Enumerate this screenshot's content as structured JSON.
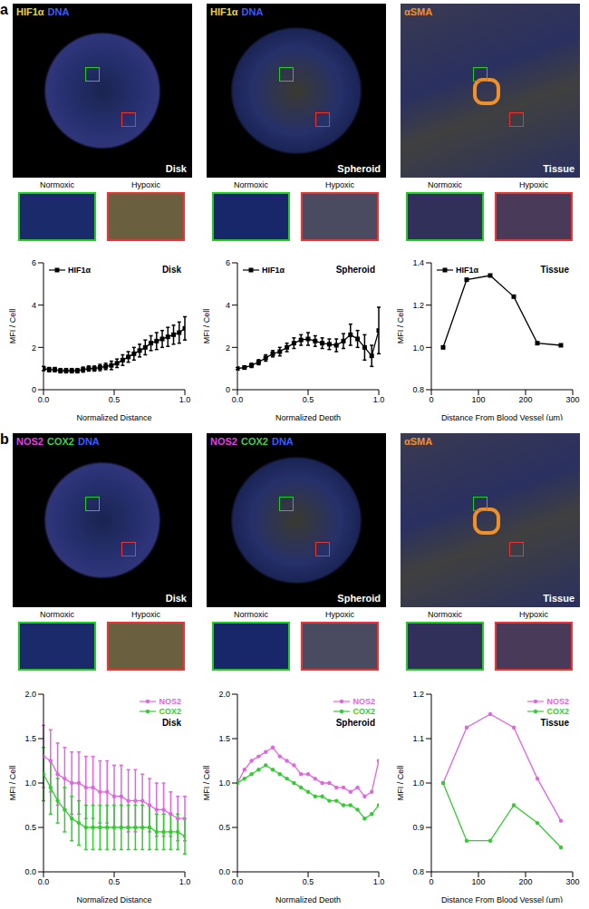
{
  "figure": {
    "panels": [
      {
        "letter": "a",
        "stains": [
          {
            "text": "HIF1α",
            "color": "#f2d230"
          },
          {
            "text": "DNA",
            "color": "#3b5bff"
          }
        ],
        "tissue_stain": {
          "text": "αSMA",
          "color": "#f0902a"
        },
        "samples": [
          "Disk",
          "Spheroid",
          "Tissue"
        ],
        "insets": [
          "Normoxic",
          "Hypoxic"
        ]
      },
      {
        "letter": "b",
        "stains": [
          {
            "text": "NOS2",
            "color": "#e040e0"
          },
          {
            "text": "COX2",
            "color": "#40d040"
          },
          {
            "text": "DNA",
            "color": "#3b5bff"
          }
        ],
        "tissue_stain": {
          "text": "αSMA",
          "color": "#f0902a"
        },
        "samples": [
          "Disk",
          "Spheroid",
          "Tissue"
        ],
        "insets": [
          "Normoxic",
          "Hypoxic"
        ]
      }
    ]
  },
  "chart_data": [
    {
      "type": "line",
      "title": "Disk",
      "x_label": "Normalized Distance",
      "y_label": "MFI / Cell",
      "legend": "top-left",
      "xlim": [
        0,
        1
      ],
      "xticks": [
        {
          "value": 0,
          "label": "0.0"
        },
        {
          "value": 0.5,
          "label": "0.5"
        },
        {
          "value": 1,
          "label": "1.0"
        }
      ],
      "ylim": [
        0,
        6
      ],
      "yticks": [
        0,
        2,
        4,
        6
      ],
      "x": [
        0,
        0.04,
        0.08,
        0.12,
        0.16,
        0.2,
        0.24,
        0.28,
        0.32,
        0.36,
        0.4,
        0.44,
        0.48,
        0.52,
        0.56,
        0.6,
        0.64,
        0.68,
        0.72,
        0.76,
        0.8,
        0.84,
        0.88,
        0.92,
        0.96,
        1.0
      ],
      "series": [
        {
          "name": "HIF1α",
          "color": "#000000",
          "marker": "square",
          "values": [
            1.0,
            0.95,
            0.95,
            0.9,
            0.9,
            0.9,
            0.9,
            0.95,
            1.0,
            1.0,
            1.05,
            1.1,
            1.15,
            1.25,
            1.4,
            1.55,
            1.7,
            1.85,
            2.0,
            2.2,
            2.3,
            2.4,
            2.5,
            2.6,
            2.7,
            2.9
          ],
          "errors": [
            0.1,
            0.1,
            0.1,
            0.1,
            0.1,
            0.1,
            0.1,
            0.12,
            0.12,
            0.12,
            0.15,
            0.15,
            0.2,
            0.2,
            0.25,
            0.25,
            0.3,
            0.3,
            0.35,
            0.35,
            0.4,
            0.4,
            0.45,
            0.45,
            0.5,
            0.55
          ]
        }
      ]
    },
    {
      "type": "line",
      "title": "Spheroid",
      "x_label": "Normalized Depth",
      "y_label": "MFI / Cell",
      "legend": "top-left",
      "xlim": [
        0,
        1
      ],
      "xticks": [
        {
          "value": 0,
          "label": "0.0"
        },
        {
          "value": 0.5,
          "label": "0.5"
        },
        {
          "value": 1,
          "label": "1.0"
        }
      ],
      "ylim": [
        0,
        6
      ],
      "yticks": [
        0,
        2,
        4,
        6
      ],
      "x": [
        0,
        0.05,
        0.1,
        0.15,
        0.2,
        0.25,
        0.3,
        0.35,
        0.4,
        0.45,
        0.5,
        0.55,
        0.6,
        0.65,
        0.7,
        0.75,
        0.8,
        0.85,
        0.9,
        0.95,
        1.0
      ],
      "series": [
        {
          "name": "HIF1α",
          "color": "#000000",
          "marker": "square",
          "values": [
            1.0,
            1.05,
            1.15,
            1.3,
            1.5,
            1.7,
            1.8,
            2.0,
            2.2,
            2.35,
            2.4,
            2.3,
            2.2,
            2.15,
            2.1,
            2.3,
            2.6,
            2.4,
            2.0,
            1.6,
            2.8
          ],
          "errors": [
            0.05,
            0.08,
            0.1,
            0.12,
            0.15,
            0.15,
            0.2,
            0.2,
            0.25,
            0.25,
            0.3,
            0.25,
            0.25,
            0.25,
            0.3,
            0.35,
            0.5,
            0.4,
            0.6,
            0.5,
            1.1
          ]
        }
      ]
    },
    {
      "type": "line",
      "title": "Tissue",
      "x_label": "Distance From Blood Vessel (μm)",
      "y_label": "MFI / Cell",
      "legend": "top-left",
      "xlim": [
        0,
        300
      ],
      "xticks": [
        0,
        100,
        200,
        300
      ],
      "ylim": [
        0.8,
        1.4
      ],
      "yticks": [
        {
          "value": 0.8,
          "label": "0.8"
        },
        {
          "value": 1.0,
          "label": "1.0"
        },
        {
          "value": 1.2,
          "label": "1.2"
        },
        {
          "value": 1.4,
          "label": "1.4"
        }
      ],
      "x": [
        25,
        75,
        125,
        175,
        225,
        275
      ],
      "series": [
        {
          "name": "HIF1α",
          "color": "#000000",
          "marker": "square",
          "values": [
            1.0,
            1.32,
            1.34,
            1.24,
            1.02,
            1.01
          ]
        }
      ]
    },
    {
      "type": "line",
      "title": "Disk",
      "x_label": "Normalized Distance",
      "y_label": "MFI / Cell",
      "legend": "top-right",
      "xlim": [
        0,
        1
      ],
      "xticks": [
        {
          "value": 0,
          "label": "0.0"
        },
        {
          "value": 0.5,
          "label": "0.5"
        },
        {
          "value": 1,
          "label": "1.0"
        }
      ],
      "ylim": [
        0,
        2
      ],
      "yticks": [
        {
          "value": 0,
          "label": "0.0"
        },
        {
          "value": 0.5,
          "label": "0.5"
        },
        {
          "value": 1,
          "label": "1.0"
        },
        {
          "value": 1.5,
          "label": "1.5"
        },
        {
          "value": 2,
          "label": "2.0"
        }
      ],
      "x": [
        0,
        0.05,
        0.1,
        0.15,
        0.2,
        0.25,
        0.3,
        0.35,
        0.4,
        0.45,
        0.5,
        0.55,
        0.6,
        0.65,
        0.7,
        0.75,
        0.8,
        0.85,
        0.9,
        0.95,
        1.0
      ],
      "series": [
        {
          "name": "NOS2",
          "color": "#e066e0",
          "marker": "circle",
          "values": [
            1.3,
            1.25,
            1.1,
            1.05,
            1.0,
            1.0,
            0.95,
            0.95,
            0.9,
            0.9,
            0.85,
            0.85,
            0.8,
            0.8,
            0.8,
            0.75,
            0.7,
            0.7,
            0.65,
            0.6,
            0.6
          ],
          "errors": [
            0.35,
            0.35,
            0.35,
            0.35,
            0.35,
            0.35,
            0.35,
            0.35,
            0.35,
            0.35,
            0.35,
            0.35,
            0.35,
            0.35,
            0.3,
            0.3,
            0.3,
            0.3,
            0.25,
            0.25,
            0.25
          ]
        },
        {
          "name": "COX2",
          "color": "#33cc33",
          "marker": "circle",
          "values": [
            1.1,
            0.95,
            0.8,
            0.7,
            0.6,
            0.55,
            0.5,
            0.5,
            0.5,
            0.5,
            0.5,
            0.5,
            0.5,
            0.5,
            0.5,
            0.5,
            0.45,
            0.45,
            0.45,
            0.45,
            0.4
          ],
          "errors": [
            0.3,
            0.3,
            0.25,
            0.25,
            0.25,
            0.25,
            0.25,
            0.25,
            0.25,
            0.25,
            0.25,
            0.25,
            0.25,
            0.25,
            0.25,
            0.25,
            0.2,
            0.2,
            0.2,
            0.2,
            0.2
          ]
        }
      ]
    },
    {
      "type": "line",
      "title": "Spheroid",
      "x_label": "Normalized Depth",
      "y_label": "MFI / Cell",
      "legend": "top-right",
      "xlim": [
        0,
        1
      ],
      "xticks": [
        {
          "value": 0,
          "label": "0.0"
        },
        {
          "value": 0.5,
          "label": "0.5"
        },
        {
          "value": 1,
          "label": "1.0"
        }
      ],
      "ylim": [
        0,
        2
      ],
      "yticks": [
        {
          "value": 0,
          "label": "0.0"
        },
        {
          "value": 0.5,
          "label": "0.5"
        },
        {
          "value": 1,
          "label": "1.0"
        },
        {
          "value": 1.5,
          "label": "1.5"
        },
        {
          "value": 2,
          "label": "2.0"
        }
      ],
      "x": [
        0,
        0.05,
        0.1,
        0.15,
        0.2,
        0.25,
        0.3,
        0.35,
        0.4,
        0.45,
        0.5,
        0.55,
        0.6,
        0.65,
        0.7,
        0.75,
        0.8,
        0.85,
        0.9,
        0.95,
        1.0
      ],
      "series": [
        {
          "name": "NOS2",
          "color": "#e066e0",
          "marker": "circle",
          "values": [
            1.0,
            1.15,
            1.25,
            1.3,
            1.35,
            1.4,
            1.3,
            1.25,
            1.2,
            1.1,
            1.1,
            1.05,
            1.0,
            1.0,
            0.95,
            0.95,
            0.9,
            0.95,
            0.85,
            0.9,
            1.25
          ]
        },
        {
          "name": "COX2",
          "color": "#33cc33",
          "marker": "circle",
          "values": [
            1.0,
            1.05,
            1.1,
            1.15,
            1.2,
            1.15,
            1.1,
            1.05,
            1.0,
            0.95,
            0.9,
            0.85,
            0.85,
            0.8,
            0.8,
            0.75,
            0.75,
            0.7,
            0.6,
            0.65,
            0.75
          ]
        }
      ]
    },
    {
      "type": "line",
      "title": "Tissue",
      "x_label": "Distance From Blood Vessel (μm)",
      "y_label": "MFI / Cell",
      "legend": "top-right",
      "xlim": [
        0,
        300
      ],
      "xticks": [
        0,
        100,
        200,
        300
      ],
      "ylim": [
        0.8,
        1.2
      ],
      "yticks": [
        {
          "value": 0.8,
          "label": "0.8"
        },
        {
          "value": 0.9,
          "label": "0.9"
        },
        {
          "value": 1.0,
          "label": "1.0"
        },
        {
          "value": 1.1,
          "label": "1.1"
        },
        {
          "value": 1.2,
          "label": "1.2"
        }
      ],
      "x": [
        25,
        75,
        125,
        175,
        225,
        275
      ],
      "series": [
        {
          "name": "NOS2",
          "color": "#e066e0",
          "marker": "circle",
          "values": [
            1.0,
            1.125,
            1.155,
            1.125,
            1.01,
            0.915
          ]
        },
        {
          "name": "COX2",
          "color": "#33cc33",
          "marker": "circle",
          "values": [
            1.0,
            0.87,
            0.87,
            0.95,
            0.91,
            0.855
          ]
        }
      ]
    }
  ]
}
